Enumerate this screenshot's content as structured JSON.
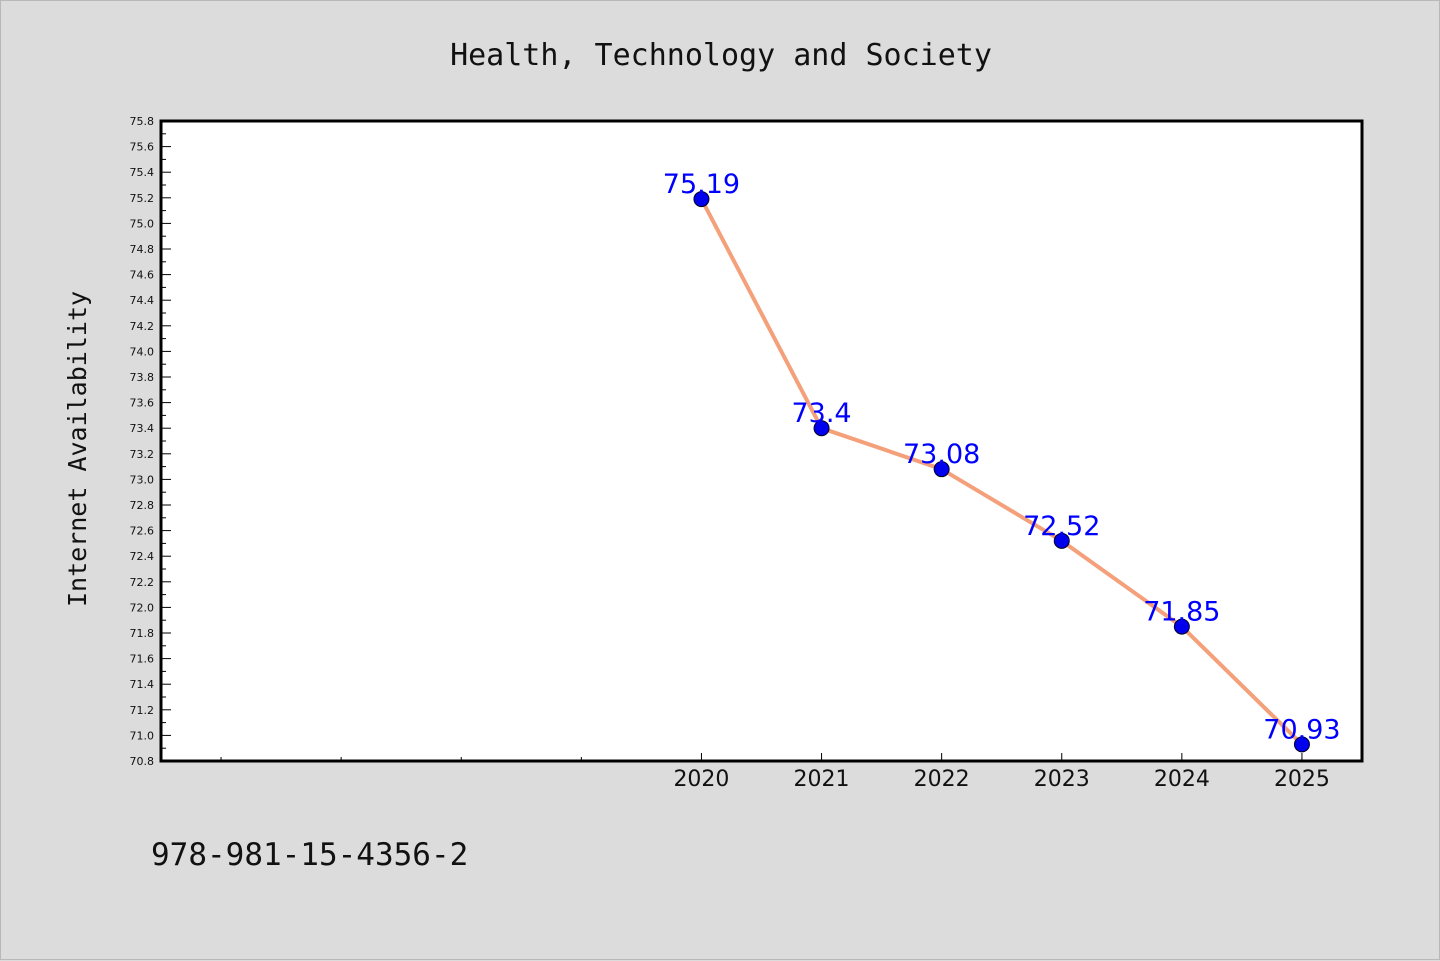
{
  "chart_data": {
    "type": "line",
    "title": "Health, Technology and Society",
    "xlabel": "",
    "ylabel": "Internet Availability",
    "x": [
      2020,
      2021,
      2022,
      2023,
      2024,
      2025
    ],
    "x_tick_labels": [
      "2020",
      "2021",
      "2022",
      "2023",
      "2024",
      "2025"
    ],
    "xlim": [
      2015.5,
      2025.5
    ],
    "ylim": [
      70.8,
      75.8
    ],
    "y_tick_step": 0.2,
    "series": [
      {
        "values": [
          75.19,
          73.4,
          73.08,
          72.52,
          71.85,
          70.93
        ],
        "data_labels": [
          "75.19",
          "73.4",
          "73.08",
          "72.52",
          "71.85",
          "70.93"
        ],
        "line_color": "#f4a07a",
        "marker_color": "#0000ee"
      }
    ],
    "data_label_color": "#0000ff",
    "grid": false,
    "legend": "none"
  },
  "footer_text": "978-981-15-4356-2",
  "colors": {
    "background": "#dcdcdc",
    "plot_background": "#ffffff",
    "axis": "#000000"
  }
}
